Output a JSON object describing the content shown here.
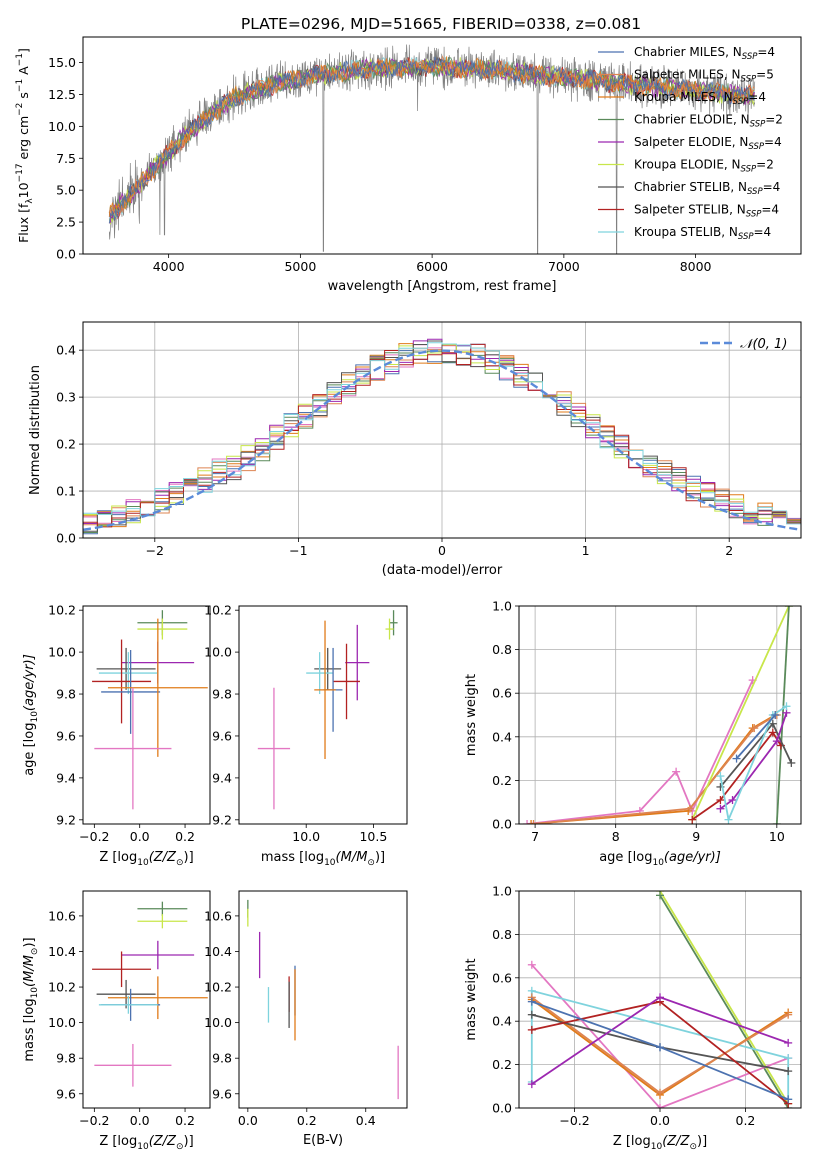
{
  "figure": {
    "title": "PLATE=0296, MJD=51665, FIBERID=0338, z=0.081"
  },
  "colors": {
    "chabrier_miles": "#4c72b0",
    "salpeter_miles": "#dd8452",
    "kroupa_miles": "#e07b1a",
    "chabrier_elodie": "#5a8a5a",
    "salpeter_elodie": "#9c27b0",
    "kroupa_elodie": "#c8e64a",
    "chabrier_stelib": "#555555",
    "salpeter_stelib": "#b22222",
    "kroupa_stelib": "#7fd3dd",
    "pink": "#e377c2",
    "normal_curve": "#5b8bd9",
    "data": "#808080"
  },
  "chart_data": [
    {
      "id": "spectrum",
      "type": "line",
      "xlabel": "wavelength [Angstrom, rest frame]",
      "ylabel_main": "Flux [f",
      "ylabel_sub": "λ",
      "ylabel_rest": "10",
      "ylabel_exp1": "−17",
      "ylabel_units": " erg cm",
      "ylabel_exp2": "−2",
      "ylabel_s": " s",
      "ylabel_exp3": "−1",
      "ylabel_A": " A",
      "ylabel_exp4": "−1",
      "ylabel_end": "]",
      "xlim": [
        3350,
        8800
      ],
      "ylim": [
        0,
        17
      ],
      "xticks": [
        "4000",
        "5000",
        "6000",
        "7000",
        "8000"
      ],
      "xtick_values": [
        4000,
        5000,
        6000,
        7000,
        8000
      ],
      "yticks": [
        "0.0",
        "2.5",
        "5.0",
        "7.5",
        "10.0",
        "12.5",
        "15.0"
      ],
      "ytick_values": [
        0,
        2.5,
        5,
        7.5,
        10,
        12.5,
        15
      ],
      "legend": [
        {
          "base": "Chabrier MILES, N",
          "sub": "SSP",
          "tail": "=4",
          "color_key": "chabrier_miles"
        },
        {
          "base": "Salpeter MILES, N",
          "sub": "SSP",
          "tail": "=5",
          "color_key": "salpeter_miles"
        },
        {
          "base": "Kroupa MILES, N",
          "sub": "SSP",
          "tail": "=4",
          "color_key": "kroupa_miles"
        },
        {
          "base": "Chabrier ELODIE, N",
          "sub": "SSP",
          "tail": "=2",
          "color_key": "chabrier_elodie"
        },
        {
          "base": "Salpeter ELODIE, N",
          "sub": "SSP",
          "tail": "=4",
          "color_key": "salpeter_elodie"
        },
        {
          "base": "Kroupa ELODIE, N",
          "sub": "SSP",
          "tail": "=2",
          "color_key": "kroupa_elodie"
        },
        {
          "base": "Chabrier STELIB, N",
          "sub": "SSP",
          "tail": "=4",
          "color_key": "chabrier_stelib"
        },
        {
          "base": "Salpeter STELIB, N",
          "sub": "SSP",
          "tail": "=4",
          "color_key": "salpeter_stelib"
        },
        {
          "base": "Kroupa STELIB, N",
          "sub": "SSP",
          "tail": "=4",
          "color_key": "kroupa_stelib"
        }
      ],
      "continuum_knots": [
        [
          3550,
          3.0
        ],
        [
          3700,
          4.5
        ],
        [
          3900,
          6.8
        ],
        [
          4100,
          9.0
        ],
        [
          4300,
          10.8
        ],
        [
          4500,
          12.3
        ],
        [
          4800,
          13.3
        ],
        [
          5100,
          14.0
        ],
        [
          5500,
          14.5
        ],
        [
          6000,
          14.7
        ],
        [
          6500,
          14.4
        ],
        [
          7000,
          13.8
        ],
        [
          7500,
          13.3
        ],
        [
          8000,
          12.8
        ],
        [
          8450,
          12.4
        ]
      ],
      "absorption_lines": [
        [
          3934,
          1.5
        ],
        [
          3969,
          1.5
        ],
        [
          5175,
          0.2
        ],
        [
          5890,
          11.2
        ],
        [
          6800,
          0.0
        ],
        [
          7400,
          0.0
        ]
      ]
    },
    {
      "id": "residual-histogram",
      "type": "bar",
      "xlabel": "(data-model)/error",
      "ylabel": "Normed distribution",
      "xlim": [
        -2.5,
        2.5
      ],
      "ylim": [
        0,
        0.46
      ],
      "xticks": [
        "−2",
        "−1",
        "0",
        "1",
        "2"
      ],
      "xtick_values": [
        -2,
        -1,
        0,
        1,
        2
      ],
      "yticks": [
        "0.0",
        "0.1",
        "0.2",
        "0.3",
        "0.4"
      ],
      "ytick_values": [
        0,
        0.1,
        0.2,
        0.3,
        0.4
      ],
      "bin_width": 0.1,
      "legend_label": "𝒩(0, 1)"
    },
    {
      "id": "age-vs-Z",
      "type": "scatter",
      "xlabel": "Z [log",
      "xlabel_sub": "10",
      "xlabel_rest": "(Z/Z",
      "xlabel_sun": "⊙",
      "xlabel_end": ")]",
      "ylabel": "age  [log",
      "ylabel_sub": "10",
      "ylabel_rest": "(age/yr)]",
      "xlim": [
        -0.25,
        0.31
      ],
      "ylim": [
        9.18,
        10.22
      ],
      "xticks": [
        "−0.2",
        "0.0",
        "0.2"
      ],
      "xtick_values": [
        -0.2,
        0,
        0.2
      ],
      "yticks": [
        "9.2",
        "9.4",
        "9.6",
        "9.8",
        "10.0",
        "10.2"
      ],
      "ytick_values": [
        9.2,
        9.4,
        9.6,
        9.8,
        10.0,
        10.2
      ],
      "points": [
        {
          "x": 0.1,
          "y": 10.14,
          "xerr": 0.11,
          "yerr": 0.06,
          "color_key": "chabrier_elodie"
        },
        {
          "x": 0.1,
          "y": 10.11,
          "xerr": 0.11,
          "yerr": 0.05,
          "color_key": "kroupa_elodie"
        },
        {
          "x": 0.08,
          "y": 9.95,
          "xerr": 0.16,
          "yerr": 0.1,
          "color_key": "salpeter_elodie"
        },
        {
          "x": -0.06,
          "y": 9.92,
          "xerr": 0.13,
          "yerr": 0.1,
          "color_key": "chabrier_stelib"
        },
        {
          "x": -0.05,
          "y": 9.9,
          "xerr": 0.13,
          "yerr": 0.1,
          "color_key": "kroupa_stelib"
        },
        {
          "x": -0.08,
          "y": 9.86,
          "xerr": 0.13,
          "yerr": 0.2,
          "color_key": "salpeter_stelib"
        },
        {
          "x": -0.04,
          "y": 9.81,
          "xerr": 0.13,
          "yerr": 0.2,
          "color_key": "chabrier_miles"
        },
        {
          "x": 0.08,
          "y": 9.83,
          "xerr": 0.22,
          "yerr": 0.33,
          "color_key": "kroupa_miles"
        },
        {
          "x": -0.03,
          "y": 9.54,
          "xerr": 0.17,
          "yerr": 0.29,
          "color_key": "pink"
        }
      ]
    },
    {
      "id": "age-vs-mass",
      "type": "scatter",
      "xlabel": "mass [log",
      "xlabel_sub": "10",
      "xlabel_rest": "(M/M",
      "xlabel_sun": "⊙",
      "xlabel_end": ")]",
      "xlim": [
        9.5,
        10.75
      ],
      "ylim": [
        9.18,
        10.22
      ],
      "xticks": [
        "10.0",
        "10.5"
      ],
      "xtick_values": [
        10.0,
        10.5
      ],
      "yticks": [
        "9.2",
        "9.4",
        "9.6",
        "9.8",
        "10.0",
        "10.2"
      ],
      "ytick_values": [
        9.2,
        9.4,
        9.6,
        9.8,
        10.0,
        10.2
      ],
      "points": [
        {
          "x": 10.65,
          "y": 10.14,
          "xerr": 0.03,
          "yerr": 0.06,
          "color_key": "chabrier_elodie"
        },
        {
          "x": 10.62,
          "y": 10.11,
          "xerr": 0.03,
          "yerr": 0.05,
          "color_key": "kroupa_elodie"
        },
        {
          "x": 10.38,
          "y": 9.95,
          "xerr": 0.09,
          "yerr": 0.18,
          "color_key": "salpeter_elodie"
        },
        {
          "x": 10.16,
          "y": 9.92,
          "xerr": 0.1,
          "yerr": 0.1,
          "color_key": "chabrier_stelib"
        },
        {
          "x": 10.1,
          "y": 9.9,
          "xerr": 0.1,
          "yerr": 0.1,
          "color_key": "kroupa_stelib"
        },
        {
          "x": 10.3,
          "y": 9.86,
          "xerr": 0.1,
          "yerr": 0.18,
          "color_key": "salpeter_stelib"
        },
        {
          "x": 10.2,
          "y": 9.82,
          "xerr": 0.07,
          "yerr": 0.2,
          "color_key": "chabrier_miles"
        },
        {
          "x": 10.14,
          "y": 9.82,
          "xerr": 0.08,
          "yerr": 0.33,
          "color_key": "kroupa_miles"
        },
        {
          "x": 9.76,
          "y": 9.54,
          "xerr": 0.12,
          "yerr": 0.29,
          "color_key": "pink"
        }
      ]
    },
    {
      "id": "weight-vs-age",
      "type": "line",
      "xlabel": "age  [log",
      "xlabel_sub": "10",
      "xlabel_rest": "(age/yr)]",
      "ylabel": "mass weight",
      "xlim": [
        6.8,
        10.3
      ],
      "ylim": [
        0,
        1
      ],
      "xticks": [
        "7",
        "8",
        "9",
        "10"
      ],
      "xtick_values": [
        7,
        8,
        9,
        10
      ],
      "yticks": [
        "0.0",
        "0.2",
        "0.4",
        "0.6",
        "0.8",
        "1.0"
      ],
      "ytick_values": [
        0,
        0.2,
        0.4,
        0.6,
        0.8,
        1.0
      ],
      "series": [
        {
          "color_key": "pink",
          "x": [
            6.9,
            8.3,
            8.75,
            8.95,
            9.7
          ],
          "y": [
            0.0,
            0.06,
            0.24,
            0.06,
            0.66
          ]
        },
        {
          "color_key": "kroupa_miles",
          "x": [
            6.95,
            8.9,
            9.7,
            9.98
          ],
          "y": [
            0.0,
            0.06,
            0.44,
            0.5
          ]
        },
        {
          "color_key": "salpeter_miles",
          "x": [
            6.98,
            8.92,
            9.72,
            10.0
          ],
          "y": [
            0.0,
            0.07,
            0.44,
            0.5
          ]
        },
        {
          "color_key": "kroupa_elodie",
          "x": [
            8.95,
            10.15
          ],
          "y": [
            0.02,
            1.0
          ]
        },
        {
          "color_key": "chabrier_elodie",
          "x": [
            10.0,
            10.15
          ],
          "y": [
            0.0,
            1.0
          ]
        },
        {
          "color_key": "salpeter_stelib",
          "x": [
            8.95,
            9.3,
            9.95,
            10.05
          ],
          "y": [
            0.02,
            0.11,
            0.42,
            0.36
          ]
        },
        {
          "color_key": "chabrier_stelib",
          "x": [
            9.3,
            9.95,
            10.18
          ],
          "y": [
            0.17,
            0.46,
            0.28
          ]
        },
        {
          "color_key": "salpeter_elodie",
          "x": [
            9.3,
            9.45,
            10.0,
            10.12
          ],
          "y": [
            0.07,
            0.11,
            0.38,
            0.51
          ]
        },
        {
          "color_key": "kroupa_stelib",
          "x": [
            9.3,
            9.4,
            9.95,
            10.12
          ],
          "y": [
            0.22,
            0.02,
            0.5,
            0.54
          ]
        },
        {
          "color_key": "chabrier_miles",
          "x": [
            9.5,
            9.98
          ],
          "y": [
            0.3,
            0.5
          ]
        }
      ]
    },
    {
      "id": "mass-vs-Z",
      "type": "scatter",
      "xlabel": "Z [log",
      "xlabel_sub": "10",
      "xlabel_rest": "(Z/Z",
      "xlabel_sun": "⊙",
      "xlabel_end": ")]",
      "ylabel": "mass [log",
      "ylabel_sub": "10",
      "ylabel_rest": "(M/M",
      "ylabel_sun": "⊙",
      "ylabel_end": ")]",
      "xlim": [
        -0.25,
        0.31
      ],
      "ylim": [
        9.52,
        10.74
      ],
      "xticks": [
        "−0.2",
        "0.0",
        "0.2"
      ],
      "xtick_values": [
        -0.2,
        0,
        0.2
      ],
      "yticks": [
        "9.6",
        "9.8",
        "10.0",
        "10.2",
        "10.4",
        "10.6"
      ],
      "ytick_values": [
        9.6,
        9.8,
        10.0,
        10.2,
        10.4,
        10.6
      ],
      "points": [
        {
          "x": 0.1,
          "y": 10.64,
          "xerr": 0.11,
          "yerr": 0.04,
          "color_key": "chabrier_elodie"
        },
        {
          "x": 0.1,
          "y": 10.57,
          "xerr": 0.11,
          "yerr": 0.04,
          "color_key": "kroupa_elodie"
        },
        {
          "x": 0.08,
          "y": 10.38,
          "xerr": 0.16,
          "yerr": 0.08,
          "color_key": "salpeter_elodie"
        },
        {
          "x": -0.08,
          "y": 10.3,
          "xerr": 0.13,
          "yerr": 0.1,
          "color_key": "salpeter_stelib"
        },
        {
          "x": -0.06,
          "y": 10.16,
          "xerr": 0.13,
          "yerr": 0.08,
          "color_key": "chabrier_stelib"
        },
        {
          "x": 0.08,
          "y": 10.14,
          "xerr": 0.22,
          "yerr": 0.12,
          "color_key": "kroupa_miles"
        },
        {
          "x": -0.04,
          "y": 10.1,
          "xerr": 0.13,
          "yerr": 0.09,
          "color_key": "chabrier_miles"
        },
        {
          "x": -0.05,
          "y": 10.1,
          "xerr": 0.13,
          "yerr": 0.05,
          "color_key": "kroupa_stelib"
        },
        {
          "x": -0.03,
          "y": 9.76,
          "xerr": 0.17,
          "yerr": 0.12,
          "color_key": "pink"
        }
      ]
    },
    {
      "id": "mass-vs-ebv",
      "type": "scatter",
      "xlabel": "E(B-V)",
      "xlim": [
        -0.03,
        0.54
      ],
      "ylim": [
        9.52,
        10.74
      ],
      "xticks": [
        "0.0",
        "0.2",
        "0.4"
      ],
      "xtick_values": [
        0,
        0.2,
        0.4
      ],
      "yticks": [
        "9.6",
        "9.8",
        "10.0",
        "10.2",
        "10.4",
        "10.6"
      ],
      "ytick_values": [
        9.6,
        9.8,
        10.0,
        10.2,
        10.4,
        10.6
      ],
      "points": [
        {
          "x": 0.0,
          "y": 10.64,
          "xerr": 0,
          "yerr": 0.05,
          "color_key": "chabrier_elodie"
        },
        {
          "x": 0.0,
          "y": 10.59,
          "xerr": 0,
          "yerr": 0.05,
          "color_key": "kroupa_elodie"
        },
        {
          "x": 0.04,
          "y": 10.38,
          "xerr": 0,
          "yerr": 0.13,
          "color_key": "salpeter_elodie"
        },
        {
          "x": 0.07,
          "y": 10.1,
          "xerr": 0,
          "yerr": 0.1,
          "color_key": "kroupa_stelib"
        },
        {
          "x": 0.14,
          "y": 10.16,
          "xerr": 0,
          "yerr": 0.1,
          "color_key": "salpeter_stelib"
        },
        {
          "x": 0.14,
          "y": 10.1,
          "xerr": 0,
          "yerr": 0.13,
          "color_key": "chabrier_stelib"
        },
        {
          "x": 0.16,
          "y": 10.18,
          "xerr": 0,
          "yerr": 0.14,
          "color_key": "chabrier_miles"
        },
        {
          "x": 0.16,
          "y": 10.1,
          "xerr": 0,
          "yerr": 0.2,
          "color_key": "kroupa_miles"
        },
        {
          "x": 0.51,
          "y": 9.72,
          "xerr": 0,
          "yerr": 0.15,
          "color_key": "pink"
        }
      ]
    },
    {
      "id": "weight-vs-Z",
      "type": "line",
      "xlabel": "Z [log",
      "xlabel_sub": "10",
      "xlabel_rest": "(Z/Z",
      "xlabel_sun": "⊙",
      "xlabel_end": ")]",
      "ylabel": "mass weight",
      "xlim": [
        -0.33,
        0.33
      ],
      "ylim": [
        0,
        1
      ],
      "xticks": [
        "−0.2",
        "0.0",
        "0.2"
      ],
      "xtick_values": [
        -0.2,
        0,
        0.2
      ],
      "yticks": [
        "0.0",
        "0.2",
        "0.4",
        "0.6",
        "0.8",
        "1.0"
      ],
      "ytick_values": [
        0,
        0.2,
        0.4,
        0.6,
        0.8,
        1.0
      ],
      "series": [
        {
          "color_key": "kroupa_elodie",
          "x": [
            0.0,
            0.3
          ],
          "y": [
            1.0,
            0.02
          ]
        },
        {
          "color_key": "chabrier_elodie",
          "x": [
            0.0,
            0.3
          ],
          "y": [
            0.98,
            0.0
          ]
        },
        {
          "color_key": "pink",
          "x": [
            -0.3,
            0.0,
            0.3
          ],
          "y": [
            0.66,
            0.0,
            0.23
          ]
        },
        {
          "color_key": "kroupa_stelib",
          "x": [
            -0.3,
            -0.3,
            0.3,
            0.3
          ],
          "y": [
            0.12,
            0.54,
            0.23,
            0.04
          ]
        },
        {
          "color_key": "kroupa_miles",
          "x": [
            -0.3,
            0.0,
            0.3
          ],
          "y": [
            0.5,
            0.06,
            0.44
          ]
        },
        {
          "color_key": "salpeter_miles",
          "x": [
            -0.3,
            0.0,
            0.3
          ],
          "y": [
            0.51,
            0.07,
            0.43
          ]
        },
        {
          "color_key": "chabrier_stelib",
          "x": [
            -0.3,
            0.0,
            0.3
          ],
          "y": [
            0.43,
            0.28,
            0.17
          ]
        },
        {
          "color_key": "salpeter_stelib",
          "x": [
            -0.3,
            0.0,
            0.3
          ],
          "y": [
            0.36,
            0.49,
            0.02
          ]
        },
        {
          "color_key": "salpeter_elodie",
          "x": [
            -0.3,
            0.0,
            0.3
          ],
          "y": [
            0.11,
            0.51,
            0.3
          ]
        },
        {
          "color_key": "chabrier_miles",
          "x": [
            -0.3,
            0.0,
            0.3
          ],
          "y": [
            0.49,
            0.28,
            0.04
          ]
        }
      ]
    }
  ]
}
